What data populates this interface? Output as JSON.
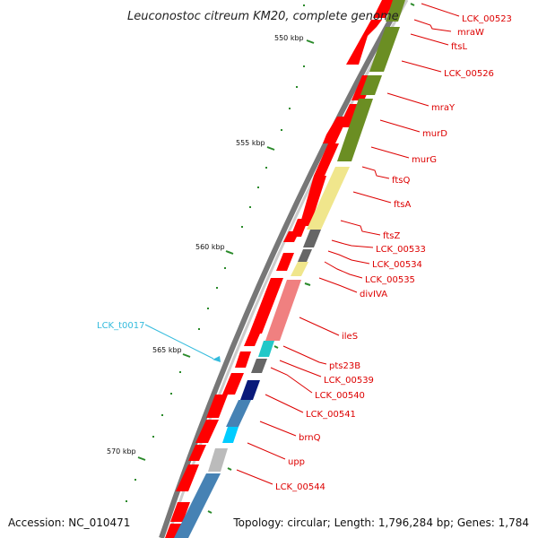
{
  "title": "Leuconostoc citreum KM20, complete genome",
  "footer": {
    "accession": "Accession: NC_010471",
    "topology": "Topology: circular; Length: 1,796,284 bp; Genes: 1,784"
  },
  "colors": {
    "gene_label": "#dd0000",
    "trna_label": "#33bbdd",
    "cds": "#ff0000",
    "tick": "#2a8a2a"
  },
  "ticks": [
    "550 kbp",
    "555 kbp",
    "560 kbp",
    "565 kbp",
    "570 kbp"
  ],
  "genes": [
    "LCK_00523",
    "mraW",
    "ftsL",
    "LCK_00526",
    "mraY",
    "murD",
    "murG",
    "ftsQ",
    "ftsA",
    "ftsZ",
    "LCK_00533",
    "LCK_00534",
    "LCK_00535",
    "divIVA",
    "ileS",
    "pts23B",
    "LCK_00539",
    "LCK_00540",
    "LCK_00541",
    "brnQ",
    "upp",
    "LCK_00544"
  ],
  "trna": [
    "LCK_t0017"
  ]
}
